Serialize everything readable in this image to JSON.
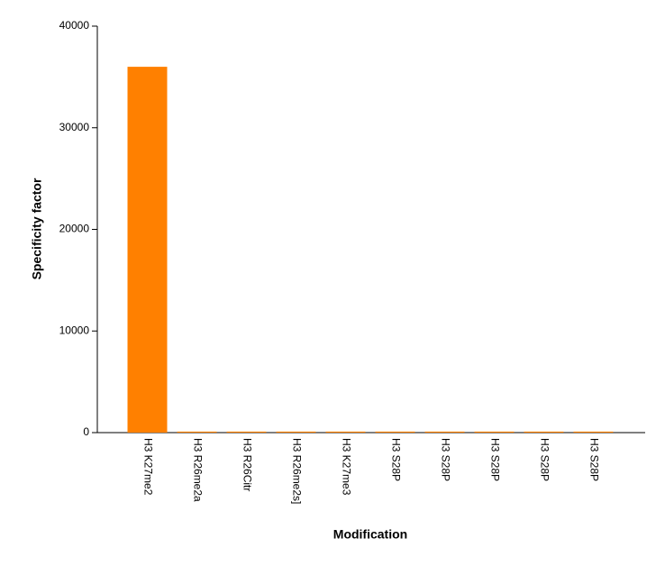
{
  "chart_data": {
    "type": "bar",
    "xlabel": "Modification",
    "ylabel": "Specificity factor",
    "categories": [
      "H3 K27me2",
      "H3 R26me2a",
      "H3 R26Citr",
      "H3 R26me2s]",
      "H3 K27me3",
      "H3 S28P",
      "H3 S28P",
      "H3 S28P",
      "H3 S28P",
      "H3 S28P"
    ],
    "values": [
      36000,
      100,
      100,
      100,
      100,
      100,
      100,
      100,
      100,
      100
    ],
    "color": "#ff8000",
    "ylim": [
      0,
      40000
    ],
    "yticks": [
      0,
      10000,
      20000,
      30000,
      40000
    ],
    "grid": false
  }
}
